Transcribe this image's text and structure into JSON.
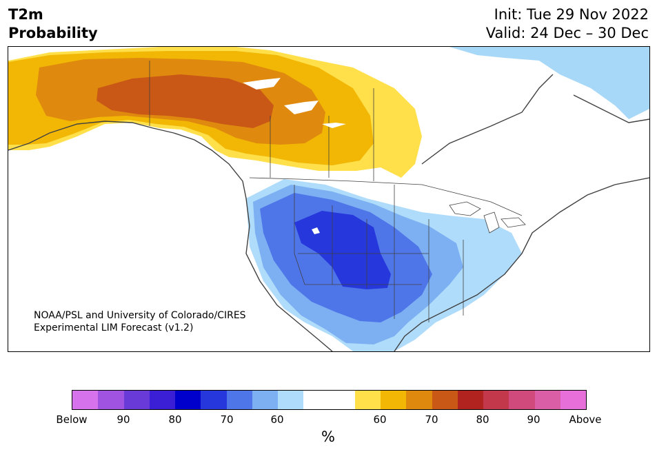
{
  "header": {
    "title_line1": "T2m",
    "title_line2": "Probability",
    "init_text": "Init: Tue 29 Nov 2022",
    "valid_text": "Valid: 24 Dec – 30 Dec"
  },
  "credit": {
    "line1": "NOAA/PSL and University of Colorado/CIRES",
    "line2": "Experimental LIM Forecast (v1.2)"
  },
  "colorbar": {
    "unit": "%",
    "colors": [
      "#d672ec",
      "#a052e0",
      "#6a3ad9",
      "#3a1fd6",
      "#0000cc",
      "#2638dc",
      "#4f76e8",
      "#7cb0f2",
      "#b0dcfb",
      "#ffffff",
      "#ffffff",
      "#ffe04a",
      "#f2b705",
      "#df8a0e",
      "#c95716",
      "#b0231f",
      "#c3394b",
      "#d04b7c",
      "#da5ea5",
      "#e66fd9"
    ],
    "tick_labels": [
      "Below",
      "90",
      "80",
      "70",
      "60",
      "60",
      "70",
      "80",
      "90",
      "Above"
    ]
  },
  "map": {
    "colors": {
      "above_60": "#ffe04a",
      "above_60_70": "#f2b705",
      "above_70_80": "#df8a0e",
      "above_80_90": "#c95716",
      "below_60": "#b0dcfb",
      "below_60_70": "#7cb0f2",
      "below_70_80": "#4f76e8",
      "below_80_90": "#2638dc",
      "coast": "#404040",
      "water_light_blue": "#a8d8f8"
    }
  }
}
